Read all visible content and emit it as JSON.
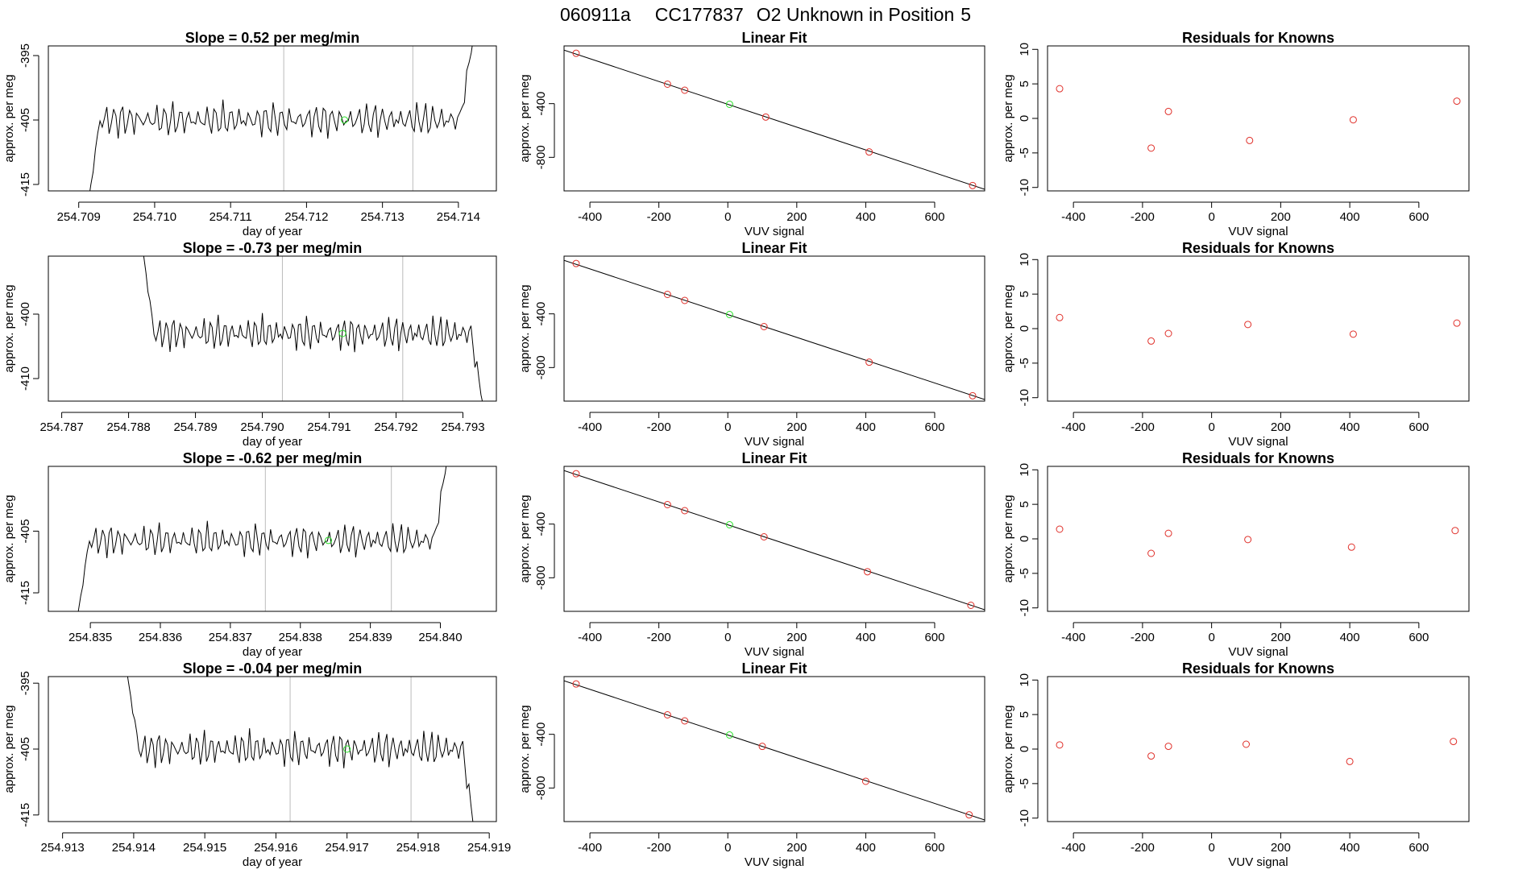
{
  "figure_title": {
    "date": "060911a",
    "cylinder": "CC177837",
    "description": "O2 Unknown in Position",
    "position": "5"
  },
  "colors": {
    "trace": "#000000",
    "known_point": "#e0302a",
    "unknown_point": "#28e028",
    "marker_line": "#bbbbbb"
  },
  "chart_data": [
    {
      "type": "line",
      "panel": "time-series",
      "row": 1,
      "title": "Slope =  0.52  per meg/min",
      "xlabel": "day of year",
      "ylabel": "approx. per meg",
      "xlim": [
        254.7086,
        254.7145
      ],
      "ylim": [
        -416,
        -393.5
      ],
      "xticks": [
        254.709,
        254.71,
        254.711,
        254.712,
        254.713,
        254.714
      ],
      "xtick_labels": [
        "254.709",
        "254.710",
        "254.711",
        "254.712",
        "254.713",
        "254.714"
      ],
      "yticks": [
        -395,
        -405,
        -415
      ],
      "ytick_labels": [
        "-395",
        "-405",
        "-415"
      ],
      "trace_start": 254.7091,
      "trace_end": 254.7142,
      "trace_start_value": -420,
      "trace_end_value": -392,
      "trace_mean": -405,
      "trace_amplitude": 3.2,
      "vertical_markers": [
        254.7117,
        254.7134
      ],
      "unknown_marker": {
        "x": 254.7125,
        "y": -405
      }
    },
    {
      "type": "line",
      "panel": "time-series",
      "row": 2,
      "title": "Slope =  -0.73  per meg/min",
      "xlabel": "day of year",
      "ylabel": "approx. per meg",
      "xlim": [
        254.7868,
        254.7935
      ],
      "ylim": [
        -413.5,
        -391
      ],
      "xticks": [
        254.787,
        254.788,
        254.789,
        254.79,
        254.791,
        254.792,
        254.793
      ],
      "xtick_labels": [
        "254.787",
        "254.788",
        "254.789",
        "254.790",
        "254.791",
        "254.792",
        "254.793"
      ],
      "yticks": [
        -400,
        -410
      ],
      "ytick_labels": [
        "-400",
        "-410"
      ],
      "trace_start": 254.7882,
      "trace_end": 254.7933,
      "trace_start_value": -389,
      "trace_end_value": -414,
      "trace_mean": -403,
      "trace_amplitude": 3.2,
      "vertical_markers": [
        254.7903,
        254.7921
      ],
      "unknown_marker": {
        "x": 254.7912,
        "y": -403
      }
    },
    {
      "type": "line",
      "panel": "time-series",
      "row": 3,
      "title": "Slope =  -0.62  per meg/min",
      "xlabel": "day of year",
      "ylabel": "approx. per meg",
      "xlim": [
        254.8344,
        254.8408
      ],
      "ylim": [
        -418,
        -394.5
      ],
      "xticks": [
        254.835,
        254.836,
        254.837,
        254.838,
        254.839,
        254.84
      ],
      "xtick_labels": [
        "254.835",
        "254.836",
        "254.837",
        "254.838",
        "254.839",
        "254.840"
      ],
      "yticks": [
        -405,
        -415
      ],
      "ytick_labels": [
        "-405",
        "-415"
      ],
      "trace_start": 254.8348,
      "trace_end": 254.8401,
      "trace_start_value": -420,
      "trace_end_value": -393,
      "trace_mean": -406.5,
      "trace_amplitude": 3.2,
      "vertical_markers": [
        254.8375,
        254.8393
      ],
      "unknown_marker": {
        "x": 254.8384,
        "y": -406.5
      }
    },
    {
      "type": "line",
      "panel": "time-series",
      "row": 4,
      "title": "Slope =  -0.04  per meg/min",
      "xlabel": "day of year",
      "ylabel": "approx. per meg",
      "xlim": [
        254.9128,
        254.9191
      ],
      "ylim": [
        -416,
        -394
      ],
      "xticks": [
        254.913,
        254.914,
        254.915,
        254.916,
        254.917,
        254.918,
        254.919
      ],
      "xtick_labels": [
        "254.913",
        "254.914",
        "254.915",
        "254.916",
        "254.917",
        "254.918",
        "254.919"
      ],
      "yticks": [
        -395,
        -405,
        -415
      ],
      "ytick_labels": [
        "-395",
        "-405",
        "-415"
      ],
      "trace_start": 254.9139,
      "trace_end": 254.9188,
      "trace_start_value": -393,
      "trace_end_value": -418,
      "trace_mean": -405,
      "trace_amplitude": 3.2,
      "vertical_markers": [
        254.9162,
        254.9179
      ],
      "unknown_marker": {
        "x": 254.917,
        "y": -405
      }
    },
    {
      "type": "scatter",
      "panel": "linear-fit",
      "row": 1,
      "title": "Linear Fit",
      "xlabel": "VUV signal",
      "ylabel": "approx. per meg",
      "xlim": [
        -475,
        745
      ],
      "ylim": [
        -1050,
        30
      ],
      "xticks": [
        -400,
        -200,
        0,
        200,
        400,
        600
      ],
      "xtick_labels": [
        "-400",
        "-200",
        "0",
        "200",
        "400",
        "600"
      ],
      "yticks": [
        -400,
        -800
      ],
      "ytick_labels": [
        "-400",
        "-800"
      ],
      "fit_line": {
        "intercept": -405,
        "slope": -0.85
      },
      "knowns": [
        {
          "x": -440,
          "y": -25
        },
        {
          "x": -175,
          "y": -255
        },
        {
          "x": -125,
          "y": -300
        },
        {
          "x": 110,
          "y": -500
        },
        {
          "x": 410,
          "y": -760
        },
        {
          "x": 710,
          "y": -1010
        }
      ],
      "unknown": {
        "x": 5,
        "y": -405
      }
    },
    {
      "type": "scatter",
      "panel": "linear-fit",
      "row": 2,
      "title": "Linear Fit",
      "xlabel": "VUV signal",
      "ylabel": "approx. per meg",
      "xlim": [
        -475,
        745
      ],
      "ylim": [
        -1050,
        30
      ],
      "xticks": [
        -400,
        -200,
        0,
        200,
        400,
        600
      ],
      "xtick_labels": [
        "-400",
        "-200",
        "0",
        "200",
        "400",
        "600"
      ],
      "yticks": [
        -400,
        -800
      ],
      "ytick_labels": [
        "-400",
        "-800"
      ],
      "fit_line": {
        "intercept": -405,
        "slope": -0.85
      },
      "knowns": [
        {
          "x": -440,
          "y": -25
        },
        {
          "x": -175,
          "y": -255
        },
        {
          "x": -125,
          "y": -300
        },
        {
          "x": 105,
          "y": -495
        },
        {
          "x": 410,
          "y": -760
        },
        {
          "x": 710,
          "y": -1010
        }
      ],
      "unknown": {
        "x": 5,
        "y": -405
      }
    },
    {
      "type": "scatter",
      "panel": "linear-fit",
      "row": 3,
      "title": "Linear Fit",
      "xlabel": "VUV signal",
      "ylabel": "approx. per meg",
      "xlim": [
        -475,
        745
      ],
      "ylim": [
        -1050,
        30
      ],
      "xticks": [
        -400,
        -200,
        0,
        200,
        400,
        600
      ],
      "xtick_labels": [
        "-400",
        "-200",
        "0",
        "200",
        "400",
        "600"
      ],
      "yticks": [
        -400,
        -800
      ],
      "ytick_labels": [
        "-400",
        "-800"
      ],
      "fit_line": {
        "intercept": -405,
        "slope": -0.85
      },
      "knowns": [
        {
          "x": -440,
          "y": -25
        },
        {
          "x": -175,
          "y": -255
        },
        {
          "x": -125,
          "y": -300
        },
        {
          "x": 105,
          "y": -495
        },
        {
          "x": 405,
          "y": -755
        },
        {
          "x": 705,
          "y": -1005
        }
      ],
      "unknown": {
        "x": 5,
        "y": -405
      }
    },
    {
      "type": "scatter",
      "panel": "linear-fit",
      "row": 4,
      "title": "Linear Fit",
      "xlabel": "VUV signal",
      "ylabel": "approx. per meg",
      "xlim": [
        -475,
        745
      ],
      "ylim": [
        -1050,
        30
      ],
      "xticks": [
        -400,
        -200,
        0,
        200,
        400,
        600
      ],
      "xtick_labels": [
        "-400",
        "-200",
        "0",
        "200",
        "400",
        "600"
      ],
      "yticks": [
        -400,
        -800
      ],
      "ytick_labels": [
        "-400",
        "-800"
      ],
      "fit_line": {
        "intercept": -405,
        "slope": -0.85
      },
      "knowns": [
        {
          "x": -440,
          "y": -25
        },
        {
          "x": -175,
          "y": -255
        },
        {
          "x": -125,
          "y": -300
        },
        {
          "x": 100,
          "y": -490
        },
        {
          "x": 400,
          "y": -750
        },
        {
          "x": 700,
          "y": -1000
        }
      ],
      "unknown": {
        "x": 5,
        "y": -405
      }
    },
    {
      "type": "scatter",
      "panel": "residuals",
      "row": 1,
      "title": "Residuals for Knowns",
      "xlabel": "VUV signal",
      "ylabel": "approx. per meg",
      "xlim": [
        -475,
        745
      ],
      "ylim": [
        -10.5,
        10.5
      ],
      "xticks": [
        -400,
        -200,
        0,
        200,
        400,
        600
      ],
      "xtick_labels": [
        "-400",
        "-200",
        "0",
        "200",
        "400",
        "600"
      ],
      "yticks": [
        10,
        5,
        0,
        -5,
        -10
      ],
      "ytick_labels": [
        "10",
        "5",
        "0",
        "-5",
        "-10"
      ],
      "points": [
        {
          "x": -440,
          "y": 4.3
        },
        {
          "x": -175,
          "y": -4.3
        },
        {
          "x": -125,
          "y": 1.0
        },
        {
          "x": 110,
          "y": -3.2
        },
        {
          "x": 410,
          "y": -0.2
        },
        {
          "x": 710,
          "y": 2.5
        }
      ]
    },
    {
      "type": "scatter",
      "panel": "residuals",
      "row": 2,
      "title": "Residuals for Knowns",
      "xlabel": "VUV signal",
      "ylabel": "approx. per meg",
      "xlim": [
        -475,
        745
      ],
      "ylim": [
        -10.5,
        10.5
      ],
      "xticks": [
        -400,
        -200,
        0,
        200,
        400,
        600
      ],
      "xtick_labels": [
        "-400",
        "-200",
        "0",
        "200",
        "400",
        "600"
      ],
      "yticks": [
        10,
        5,
        0,
        -5,
        -10
      ],
      "ytick_labels": [
        "10",
        "5",
        "0",
        "-5",
        "-10"
      ],
      "points": [
        {
          "x": -440,
          "y": 1.6
        },
        {
          "x": -175,
          "y": -1.8
        },
        {
          "x": -125,
          "y": -0.7
        },
        {
          "x": 105,
          "y": 0.6
        },
        {
          "x": 410,
          "y": -0.8
        },
        {
          "x": 710,
          "y": 0.8
        }
      ]
    },
    {
      "type": "scatter",
      "panel": "residuals",
      "row": 3,
      "title": "Residuals for Knowns",
      "xlabel": "VUV signal",
      "ylabel": "approx. per meg",
      "xlim": [
        -475,
        745
      ],
      "ylim": [
        -10.5,
        10.5
      ],
      "xticks": [
        -400,
        -200,
        0,
        200,
        400,
        600
      ],
      "xtick_labels": [
        "-400",
        "-200",
        "0",
        "200",
        "400",
        "600"
      ],
      "yticks": [
        10,
        5,
        0,
        -5,
        -10
      ],
      "ytick_labels": [
        "10",
        "5",
        "0",
        "-5",
        "-10"
      ],
      "points": [
        {
          "x": -440,
          "y": 1.4
        },
        {
          "x": -175,
          "y": -2.1
        },
        {
          "x": -125,
          "y": 0.8
        },
        {
          "x": 105,
          "y": -0.1
        },
        {
          "x": 405,
          "y": -1.2
        },
        {
          "x": 705,
          "y": 1.2
        }
      ]
    },
    {
      "type": "scatter",
      "panel": "residuals",
      "row": 4,
      "title": "Residuals for Knowns",
      "xlabel": "VUV signal",
      "ylabel": "approx. per meg",
      "xlim": [
        -475,
        745
      ],
      "ylim": [
        -10.5,
        10.5
      ],
      "xticks": [
        -400,
        -200,
        0,
        200,
        400,
        600
      ],
      "xtick_labels": [
        "-400",
        "-200",
        "0",
        "200",
        "400",
        "600"
      ],
      "yticks": [
        10,
        5,
        0,
        -5,
        -10
      ],
      "ytick_labels": [
        "10",
        "5",
        "0",
        "-5",
        "-10"
      ],
      "points": [
        {
          "x": -440,
          "y": 0.6
        },
        {
          "x": -175,
          "y": -1.0
        },
        {
          "x": -125,
          "y": 0.4
        },
        {
          "x": 100,
          "y": 0.7
        },
        {
          "x": 400,
          "y": -1.8
        },
        {
          "x": 700,
          "y": 1.1
        }
      ]
    }
  ]
}
